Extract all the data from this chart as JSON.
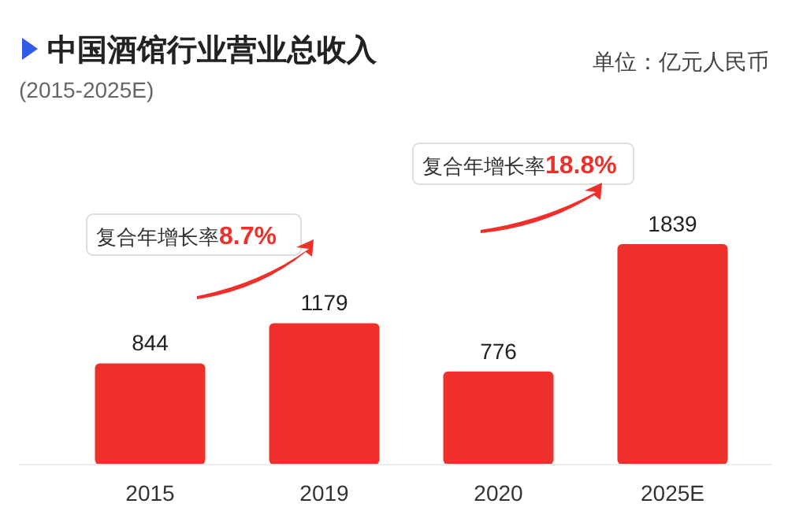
{
  "chart_data": {
    "type": "bar",
    "title": "中国酒馆行业营业总收入",
    "subtitle": "(2015-2025E)",
    "categories": [
      "2015",
      "2019",
      "2020",
      "2025E"
    ],
    "values": [
      844,
      1179,
      776,
      1839
    ],
    "color": "#ef2f2a",
    "data_labels": true,
    "annotations": [
      "单位：亿元人民币",
      "复合年增长率8.7%",
      "复合年增长率18.8%"
    ]
  }
}
